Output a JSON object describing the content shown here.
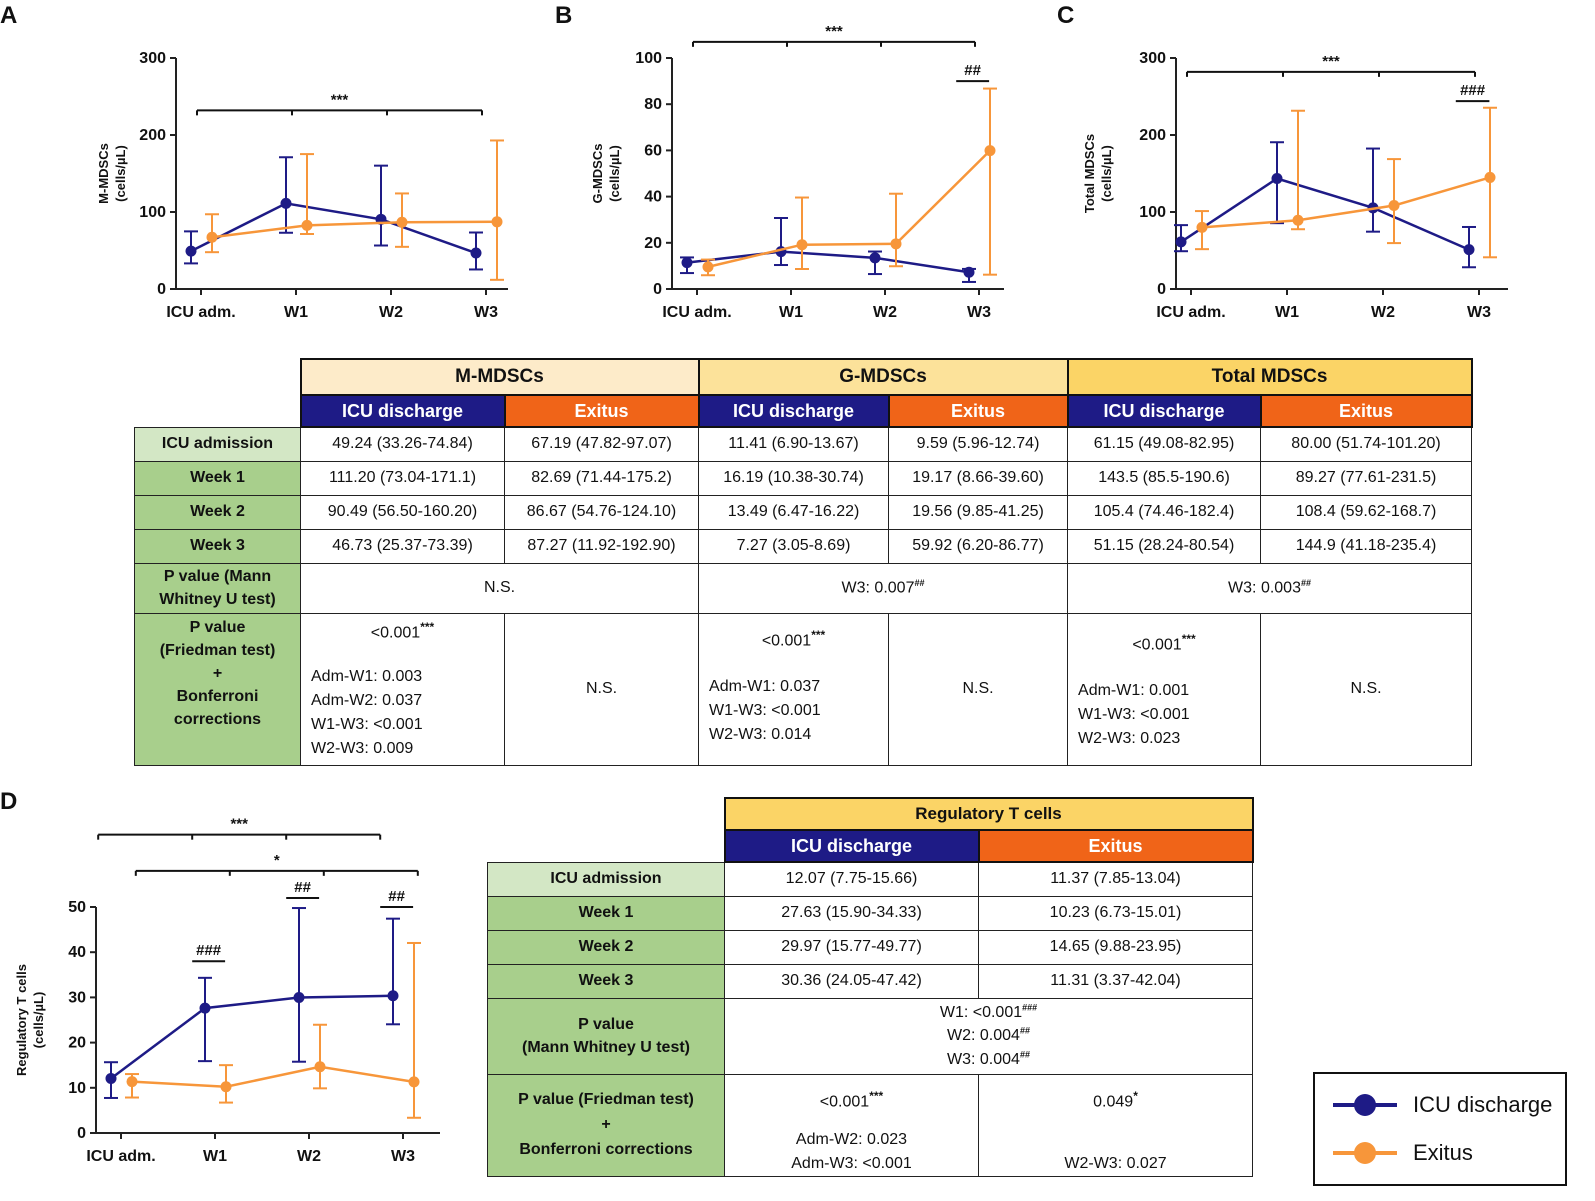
{
  "panels": {
    "a": "A",
    "b": "B",
    "c": "C",
    "d": "D"
  },
  "colors": {
    "discharge": "#1e1b86",
    "exitus": "#f7963a",
    "exitus_header": "#f06418",
    "discharge_header": "#1e1b86",
    "mmdsc_header": "#fdebc9",
    "gmdsc_header": "#fce29a",
    "total_header": "#fbd466",
    "treg_header": "#fbd466",
    "row_header": "#a8cf8c",
    "row_header_first": "#d3e7c5"
  },
  "chart_data": [
    {
      "type": "line",
      "panel": "A",
      "ylabel": "M-MDSCs (cells/µL)",
      "ylabel_line1": "M-MDSCs",
      "ylabel_line2": "(cells/µL)",
      "categories": [
        "ICU adm.",
        "W1",
        "W2",
        "W3"
      ],
      "ylim": [
        0,
        300
      ],
      "yticks": [
        "0",
        "100",
        "200",
        "300"
      ],
      "series": [
        {
          "name": "ICU discharge",
          "values": [
            49.24,
            111.2,
            90.49,
            46.73
          ],
          "lower": [
            33.26,
            73.04,
            56.5,
            25.37
          ],
          "upper": [
            74.84,
            171.1,
            160.2,
            73.39
          ]
        },
        {
          "name": "Exitus",
          "values": [
            67.19,
            82.69,
            86.67,
            87.27
          ],
          "lower": [
            47.82,
            71.44,
            54.76,
            11.92
          ],
          "upper": [
            97.07,
            175.2,
            124.1,
            192.9
          ]
        }
      ],
      "annotations": [
        {
          "text": "***",
          "level": 232,
          "from": 0,
          "to": 3,
          "ticks": [
            1,
            2
          ]
        }
      ]
    },
    {
      "type": "line",
      "panel": "B",
      "ylabel": "G-MDSCs (cells/µL)",
      "ylabel_line1": "G-MDSCs",
      "ylabel_line2": "(cells/µL)",
      "categories": [
        "ICU adm.",
        "W1",
        "W2",
        "W3"
      ],
      "ylim": [
        0,
        100
      ],
      "yticks": [
        "0",
        "20",
        "40",
        "60",
        "80",
        "100"
      ],
      "series": [
        {
          "name": "ICU discharge",
          "values": [
            11.41,
            16.19,
            13.49,
            7.27
          ],
          "lower": [
            6.9,
            10.38,
            6.47,
            3.05
          ],
          "upper": [
            13.67,
            30.74,
            16.22,
            8.69
          ]
        },
        {
          "name": "Exitus",
          "values": [
            9.59,
            19.17,
            19.56,
            59.92
          ],
          "lower": [
            5.96,
            8.66,
            9.85,
            6.2
          ],
          "upper": [
            12.74,
            39.6,
            41.25,
            86.77
          ]
        }
      ],
      "annotations": [
        {
          "text": "***",
          "level": 107,
          "from": 0,
          "to": 3,
          "ticks": [
            1,
            2
          ]
        },
        {
          "text": "##",
          "level": 90,
          "from": 2.8,
          "to": 3.15,
          "ticks": []
        }
      ]
    },
    {
      "type": "line",
      "panel": "C",
      "ylabel": "Total MDSCs (cells/µL)",
      "ylabel_line1": "Total MDSCs",
      "ylabel_line2": "(cells/µL)",
      "categories": [
        "ICU adm.",
        "W1",
        "W2",
        "W3"
      ],
      "ylim": [
        0,
        300
      ],
      "yticks": [
        "0",
        "100",
        "200",
        "300"
      ],
      "series": [
        {
          "name": "ICU discharge",
          "values": [
            61.15,
            143.5,
            105.4,
            51.15
          ],
          "lower": [
            49.08,
            85.5,
            74.46,
            28.24
          ],
          "upper": [
            82.95,
            190.6,
            182.4,
            80.54
          ]
        },
        {
          "name": "Exitus",
          "values": [
            80.0,
            89.27,
            108.4,
            144.9
          ],
          "lower": [
            51.74,
            77.61,
            59.62,
            41.18
          ],
          "upper": [
            101.2,
            231.5,
            168.7,
            235.4
          ]
        }
      ],
      "annotations": [
        {
          "text": "***",
          "level": 282,
          "from": 0,
          "to": 3,
          "ticks": [
            1,
            2
          ]
        },
        {
          "text": "###",
          "level": 244,
          "from": 2.8,
          "to": 3.15,
          "ticks": []
        }
      ]
    },
    {
      "type": "line",
      "panel": "D",
      "ylabel": "Regulatory T cells (cells/µL)",
      "ylabel_line1": "Regulatory T cells",
      "ylabel_line2": "(cells/µL)",
      "categories": [
        "ICU adm.",
        "W1",
        "W2",
        "W3"
      ],
      "ylim": [
        0,
        50
      ],
      "yticks": [
        "0",
        "10",
        "20",
        "30",
        "40",
        "50"
      ],
      "series": [
        {
          "name": "ICU discharge",
          "values": [
            12.07,
            27.63,
            29.97,
            30.36
          ],
          "lower": [
            7.75,
            15.9,
            15.77,
            24.05
          ],
          "upper": [
            15.66,
            34.33,
            49.77,
            47.42
          ]
        },
        {
          "name": "Exitus",
          "values": [
            11.37,
            10.23,
            14.65,
            11.31
          ],
          "lower": [
            7.85,
            6.73,
            9.88,
            3.37
          ],
          "upper": [
            13.04,
            15.01,
            23.95,
            42.04
          ]
        }
      ],
      "annotations": [
        {
          "text": "***",
          "level": 66,
          "from": -0.2,
          "to": 2.8,
          "ticks": [
            0.8,
            1.8
          ]
        },
        {
          "text": "*",
          "level": 58,
          "from": 0.2,
          "to": 3.2,
          "ticks": [
            1.2,
            2.2
          ]
        },
        {
          "text": "###",
          "level": 38,
          "from": 0.8,
          "to": 1.15,
          "ticks": []
        },
        {
          "text": "##",
          "level": 52,
          "from": 1.8,
          "to": 2.15,
          "ticks": []
        },
        {
          "text": "##",
          "level": 50,
          "from": 2.8,
          "to": 3.15,
          "ticks": []
        }
      ]
    }
  ],
  "table_mdsc": {
    "groups": [
      "M-MDSCs",
      "G-MDSCs",
      "Total MDSCs"
    ],
    "discharge": "ICU discharge",
    "exitus": "Exitus",
    "rows": [
      {
        "label": "ICU admission",
        "cells": [
          "49.24 (33.26-74.84)",
          "67.19 (47.82-97.07)",
          "11.41 (6.90-13.67)",
          "9.59 (5.96-12.74)",
          "61.15 (49.08-82.95)",
          "80.00 (51.74-101.20)"
        ]
      },
      {
        "label": "Week 1",
        "cells": [
          "111.20 (73.04-171.1)",
          "82.69 (71.44-175.2)",
          "16.19 (10.38-30.74)",
          "19.17 (8.66-39.60)",
          "143.5 (85.5-190.6)",
          "89.27 (77.61-231.5)"
        ]
      },
      {
        "label": "Week 2",
        "cells": [
          "90.49 (56.50-160.20)",
          "86.67 (54.76-124.10)",
          "13.49 (6.47-16.22)",
          "19.56 (9.85-41.25)",
          "105.4 (74.46-182.4)",
          "108.4 (59.62-168.7)"
        ]
      },
      {
        "label": "Week 3",
        "cells": [
          "46.73 (25.37-73.39)",
          "87.27 (11.92-192.90)",
          "7.27 (3.05-8.69)",
          "59.92 (6.20-86.77)",
          "51.15 (28.24-80.54)",
          "144.9 (41.18-235.4)"
        ]
      }
    ],
    "mw_label_1": "P value (Mann",
    "mw_label_2": "Whitney U test)",
    "mw": {
      "m": "N.S.",
      "g_text": "W3: 0.007",
      "g_sup": "##",
      "t_text": "W3: 0.003",
      "t_sup": "##"
    },
    "fr_label": [
      "P value",
      "(Friedman test)",
      "+",
      "Bonferroni",
      "corrections"
    ],
    "fr": {
      "m_main": "<0.001",
      "m_sup": "***",
      "m_lines": [
        "Adm-W1: 0.003",
        "Adm-W2: 0.037",
        "W1-W3: <0.001",
        "W2-W3: 0.009"
      ],
      "m_exit": "N.S.",
      "g_main": "<0.001",
      "g_sup": "***",
      "g_lines": [
        "Adm-W1: 0.037",
        "W1-W3: <0.001",
        "W2-W3: 0.014"
      ],
      "g_exit": "N.S.",
      "t_main": "<0.001",
      "t_sup": "***",
      "t_lines": [
        "Adm-W1: 0.001",
        "W1-W3: <0.001",
        "W2-W3: 0.023"
      ],
      "t_exit": "N.S."
    }
  },
  "table_treg": {
    "group": "Regulatory T cells",
    "discharge": "ICU discharge",
    "exitus": "Exitus",
    "rows": [
      {
        "label": "ICU admission",
        "cells": [
          "12.07 (7.75-15.66)",
          "11.37 (7.85-13.04)"
        ]
      },
      {
        "label": "Week 1",
        "cells": [
          "27.63 (15.90-34.33)",
          "10.23 (6.73-15.01)"
        ]
      },
      {
        "label": "Week 2",
        "cells": [
          "29.97 (15.77-49.77)",
          "14.65 (9.88-23.95)"
        ]
      },
      {
        "label": "Week 3",
        "cells": [
          "30.36 (24.05-47.42)",
          "11.31 (3.37-42.04)"
        ]
      }
    ],
    "mw_label": [
      "P value",
      "(Mann Whitney U test)"
    ],
    "mw_lines": [
      {
        "text": "W1: <0.001",
        "sup": "###"
      },
      {
        "text": "W2: 0.004",
        "sup": "##"
      },
      {
        "text": "W3: 0.004",
        "sup": "##"
      }
    ],
    "fr_label": [
      "P value (Friedman test)",
      "+",
      "Bonferroni corrections"
    ],
    "fr": {
      "d_main": "<0.001",
      "d_sup": "***",
      "d_lines": [
        "Adm-W2: 0.023",
        "Adm-W3: <0.001"
      ],
      "e_main": "0.049",
      "e_sup": "*",
      "e_line": "W2-W3: 0.027"
    }
  },
  "legend": {
    "discharge": "ICU discharge",
    "exitus": "Exitus"
  }
}
